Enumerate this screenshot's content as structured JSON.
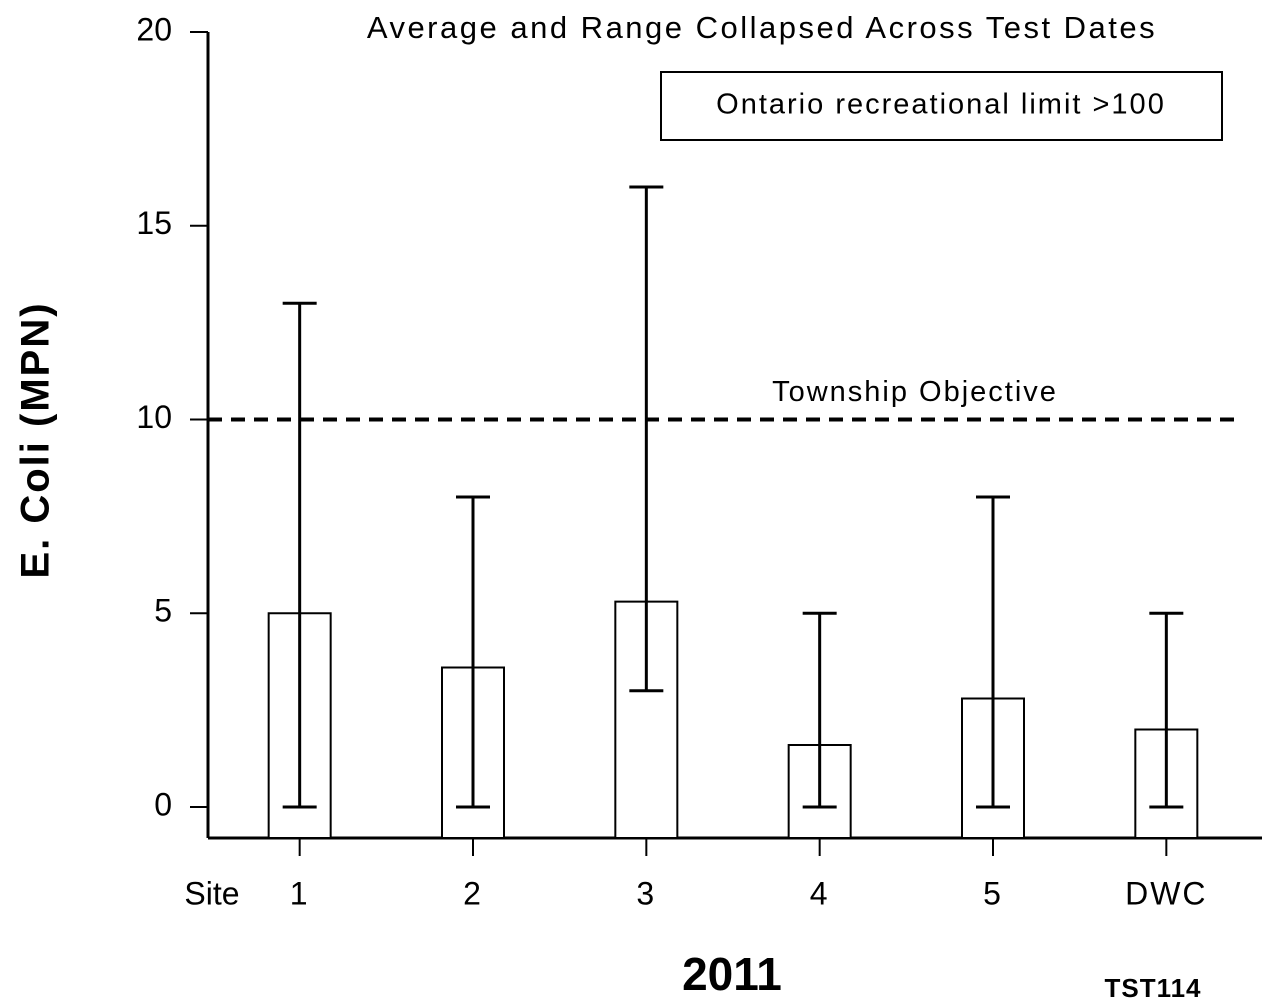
{
  "chart_data": {
    "type": "bar",
    "title": "Average and Range Collapsed Across Test Dates",
    "legend_text": "Ontario recreational limit >100",
    "ylabel": "E. Coli (MPN)",
    "xlabel": "2011",
    "x_prefix": "Site",
    "note": "TST114",
    "categories": [
      "1",
      "2",
      "3",
      "4",
      "5",
      "DWC"
    ],
    "values": [
      5.0,
      3.6,
      5.3,
      1.6,
      2.8,
      2.0
    ],
    "low": [
      0,
      0,
      3,
      0,
      0,
      0
    ],
    "high": [
      13,
      8,
      16,
      5,
      8,
      5
    ],
    "color": "#ffffff",
    "threshold": {
      "value": 10,
      "label": "Township Objective"
    },
    "ylim": [
      -0.8,
      20
    ],
    "yticks": [
      0,
      5,
      10,
      15,
      20
    ]
  }
}
